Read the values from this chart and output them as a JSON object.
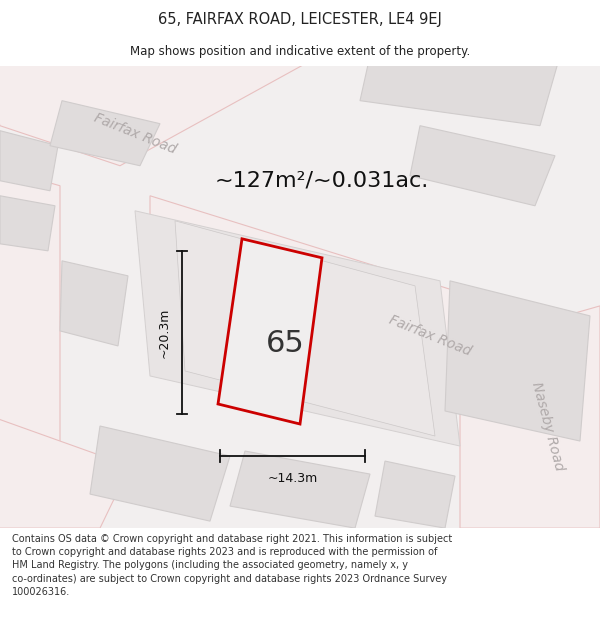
{
  "title": "65, FAIRFAX ROAD, LEICESTER, LE4 9EJ",
  "subtitle": "Map shows position and indicative extent of the property.",
  "footer_line1": "Contains OS data © Crown copyright and database right 2021. This information is subject",
  "footer_line2": "to Crown copyright and database rights 2023 and is reproduced with the permission of",
  "footer_line3": "HM Land Registry. The polygons (including the associated geometry, namely x, y",
  "footer_line4": "co-ordinates) are subject to Crown copyright and database rights 2023 Ordnance Survey",
  "footer_line5": "100026316.",
  "area_text": "~127m²/~0.031ac.",
  "width_label": "~14.3m",
  "height_label": "~20.3m",
  "number_label": "65",
  "map_bg": "#f2efef",
  "road_fill": "#f5eded",
  "road_edge": "#e8c0c0",
  "block_fill": "#e0dcdc",
  "block_edge": "#d0cccc",
  "inner_fill": "#e8e4e4",
  "inner_edge": "#d4d0d0",
  "property_fill": "#f0eeee",
  "property_outline": "#cc0000",
  "dim_color": "#111111",
  "road_text_color": "#b0aaaa",
  "title_color": "#222222",
  "footer_color": "#333333"
}
